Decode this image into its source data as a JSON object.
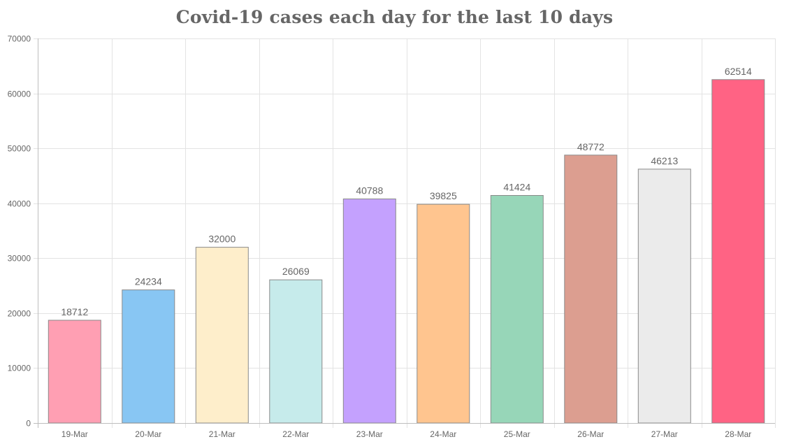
{
  "chart_data": {
    "type": "bar",
    "title": "Covid-19 cases each day for the last 10 days",
    "categories": [
      "19-Mar",
      "20-Mar",
      "21-Mar",
      "22-Mar",
      "23-Mar",
      "24-Mar",
      "25-Mar",
      "26-Mar",
      "27-Mar",
      "28-Mar"
    ],
    "values": [
      18712,
      24234,
      32000,
      26069,
      40788,
      39825,
      41424,
      48772,
      46213,
      62514
    ],
    "data_labels": [
      "18712",
      "24234",
      "32000",
      "26069",
      "40788",
      "39825",
      "41424",
      "48772",
      "46213",
      "62514"
    ],
    "colors": [
      "#ff9fb3",
      "#88c6f3",
      "#feeecb",
      "#c6ebeb",
      "#c4a1fe",
      "#ffc58f",
      "#97d6b8",
      "#dc9e90",
      "#ebebeb",
      "#ff6384"
    ],
    "ylim": [
      0,
      70000
    ],
    "yticks": [
      "0",
      "10000",
      "20000",
      "30000",
      "40000",
      "50000",
      "60000",
      "70000"
    ],
    "ytick_values": [
      0,
      10000,
      20000,
      30000,
      40000,
      50000,
      60000,
      70000
    ],
    "grid": true,
    "legend": false,
    "xlabel": "",
    "ylabel": ""
  }
}
